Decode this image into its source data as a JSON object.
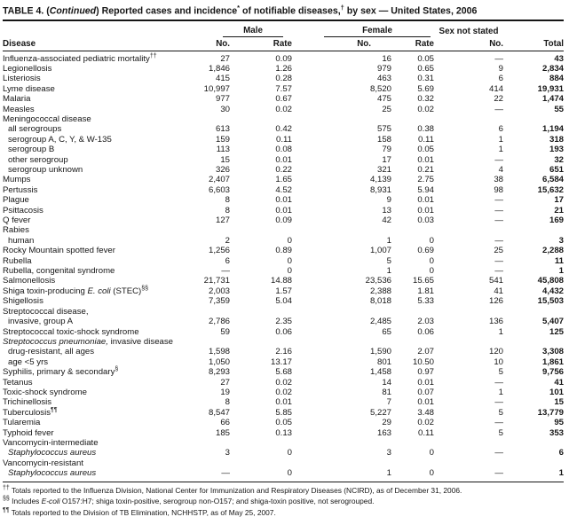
{
  "title": {
    "segments": [
      [
        "TABLE 4. (",
        "n"
      ],
      [
        "Continued",
        "i"
      ],
      [
        ") Reported cases and incidence",
        "n"
      ],
      [
        "*",
        "sup"
      ],
      [
        " of notifiable diseases,",
        "n"
      ],
      [
        "†",
        "sup"
      ],
      [
        " by sex — United States, 2006",
        "n"
      ]
    ]
  },
  "header": {
    "disease": "Disease",
    "groups": {
      "male": "Male",
      "female": "Female",
      "sex_not_stated": "Sex not stated"
    },
    "cols": {
      "no": "No.",
      "rate": "Rate",
      "total": "Total"
    }
  },
  "table": {
    "type": "table",
    "cell_names": [
      "male-no",
      "male-rate",
      "female-no",
      "female-rate",
      "sex-not-stated-no",
      "total"
    ],
    "rows": [
      {
        "label": [
          [
            "Influenza-associated pediatric mortality",
            "n"
          ],
          [
            "††",
            "sup"
          ]
        ],
        "indent": 0,
        "cells": [
          "27",
          "0.09",
          "16",
          "0.05",
          "—",
          "43"
        ]
      },
      {
        "label": [
          [
            "Legionellosis",
            "n"
          ]
        ],
        "indent": 0,
        "cells": [
          "1,846",
          "1.26",
          "979",
          "0.65",
          "9",
          "2,834"
        ]
      },
      {
        "label": [
          [
            "Listeriosis",
            "n"
          ]
        ],
        "indent": 0,
        "cells": [
          "415",
          "0.28",
          "463",
          "0.31",
          "6",
          "884"
        ]
      },
      {
        "label": [
          [
            "Lyme disease",
            "n"
          ]
        ],
        "indent": 0,
        "cells": [
          "10,997",
          "7.57",
          "8,520",
          "5.69",
          "414",
          "19,931"
        ]
      },
      {
        "label": [
          [
            "Malaria",
            "n"
          ]
        ],
        "indent": 0,
        "cells": [
          "977",
          "0.67",
          "475",
          "0.32",
          "22",
          "1,474"
        ]
      },
      {
        "label": [
          [
            "Measles",
            "n"
          ]
        ],
        "indent": 0,
        "cells": [
          "30",
          "0.02",
          "25",
          "0.02",
          "—",
          "55"
        ]
      },
      {
        "label": [
          [
            "Meningococcal disease",
            "n"
          ]
        ],
        "indent": 0,
        "cells": null
      },
      {
        "label": [
          [
            "all serogroups",
            "n"
          ]
        ],
        "indent": 1,
        "cells": [
          "613",
          "0.42",
          "575",
          "0.38",
          "6",
          "1,194"
        ]
      },
      {
        "label": [
          [
            "serogroup A, C, Y, & W-135",
            "n"
          ]
        ],
        "indent": 1,
        "cells": [
          "159",
          "0.11",
          "158",
          "0.11",
          "1",
          "318"
        ]
      },
      {
        "label": [
          [
            "serogroup B",
            "n"
          ]
        ],
        "indent": 1,
        "cells": [
          "113",
          "0.08",
          "79",
          "0.05",
          "1",
          "193"
        ]
      },
      {
        "label": [
          [
            "other serogroup",
            "n"
          ]
        ],
        "indent": 1,
        "cells": [
          "15",
          "0.01",
          "17",
          "0.01",
          "—",
          "32"
        ]
      },
      {
        "label": [
          [
            "serogroup unknown",
            "n"
          ]
        ],
        "indent": 1,
        "cells": [
          "326",
          "0.22",
          "321",
          "0.21",
          "4",
          "651"
        ]
      },
      {
        "label": [
          [
            "Mumps",
            "n"
          ]
        ],
        "indent": 0,
        "cells": [
          "2,407",
          "1.65",
          "4,139",
          "2.75",
          "38",
          "6,584"
        ]
      },
      {
        "label": [
          [
            "Pertussis",
            "n"
          ]
        ],
        "indent": 0,
        "cells": [
          "6,603",
          "4.52",
          "8,931",
          "5.94",
          "98",
          "15,632"
        ]
      },
      {
        "label": [
          [
            "Plague",
            "n"
          ]
        ],
        "indent": 0,
        "cells": [
          "8",
          "0.01",
          "9",
          "0.01",
          "—",
          "17"
        ]
      },
      {
        "label": [
          [
            "Psittacosis",
            "n"
          ]
        ],
        "indent": 0,
        "cells": [
          "8",
          "0.01",
          "13",
          "0.01",
          "—",
          "21"
        ]
      },
      {
        "label": [
          [
            "Q fever",
            "n"
          ]
        ],
        "indent": 0,
        "cells": [
          "127",
          "0.09",
          "42",
          "0.03",
          "—",
          "169"
        ]
      },
      {
        "label": [
          [
            "Rabies",
            "n"
          ]
        ],
        "indent": 0,
        "cells": null
      },
      {
        "label": [
          [
            "human",
            "n"
          ]
        ],
        "indent": 1,
        "cells": [
          "2",
          "0",
          "1",
          "0",
          "—",
          "3"
        ]
      },
      {
        "label": [
          [
            "Rocky Mountain spotted fever",
            "n"
          ]
        ],
        "indent": 0,
        "cells": [
          "1,256",
          "0.89",
          "1,007",
          "0.69",
          "25",
          "2,288"
        ]
      },
      {
        "label": [
          [
            "Rubella",
            "n"
          ]
        ],
        "indent": 0,
        "cells": [
          "6",
          "0",
          "5",
          "0",
          "—",
          "11"
        ]
      },
      {
        "label": [
          [
            "Rubella, congenital syndrome",
            "n"
          ]
        ],
        "indent": 0,
        "cells": [
          "—",
          "0",
          "1",
          "0",
          "—",
          "1"
        ]
      },
      {
        "label": [
          [
            "Salmonellosis",
            "n"
          ]
        ],
        "indent": 0,
        "cells": [
          "21,731",
          "14.88",
          "23,536",
          "15.65",
          "541",
          "45,808"
        ]
      },
      {
        "label": [
          [
            "Shiga toxin-producing ",
            "n"
          ],
          [
            "E. coli",
            "i"
          ],
          [
            " (STEC)",
            "n"
          ],
          [
            "§§",
            "sup"
          ]
        ],
        "indent": 0,
        "cells": [
          "2,003",
          "1.57",
          "2,388",
          "1.81",
          "41",
          "4,432"
        ]
      },
      {
        "label": [
          [
            "Shigellosis",
            "n"
          ]
        ],
        "indent": 0,
        "cells": [
          "7,359",
          "5.04",
          "8,018",
          "5.33",
          "126",
          "15,503"
        ]
      },
      {
        "label": [
          [
            "Streptococcal disease,",
            "n"
          ]
        ],
        "indent": 0,
        "cells": null
      },
      {
        "label": [
          [
            "invasive, group A",
            "n"
          ]
        ],
        "indent": 1,
        "cells": [
          "2,786",
          "2.35",
          "2,485",
          "2.03",
          "136",
          "5,407"
        ]
      },
      {
        "label": [
          [
            "Streptococcal toxic-shock syndrome",
            "n"
          ]
        ],
        "indent": 0,
        "cells": [
          "59",
          "0.06",
          "65",
          "0.06",
          "1",
          "125"
        ]
      },
      {
        "label": [
          [
            "Streptococcus pneumoniae,",
            "i"
          ],
          [
            " invasive disease",
            "n"
          ]
        ],
        "indent": 0,
        "cells": null
      },
      {
        "label": [
          [
            "drug-resistant, all ages",
            "n"
          ]
        ],
        "indent": 1,
        "cells": [
          "1,598",
          "2.16",
          "1,590",
          "2.07",
          "120",
          "3,308"
        ]
      },
      {
        "label": [
          [
            "age <5 yrs",
            "n"
          ]
        ],
        "indent": 1,
        "cells": [
          "1,050",
          "13.17",
          "801",
          "10.50",
          "10",
          "1,861"
        ]
      },
      {
        "label": [
          [
            "Syphilis, primary & secondary",
            "n"
          ],
          [
            "§",
            "sup"
          ]
        ],
        "indent": 0,
        "cells": [
          "8,293",
          "5.68",
          "1,458",
          "0.97",
          "5",
          "9,756"
        ]
      },
      {
        "label": [
          [
            "Tetanus",
            "n"
          ]
        ],
        "indent": 0,
        "cells": [
          "27",
          "0.02",
          "14",
          "0.01",
          "—",
          "41"
        ]
      },
      {
        "label": [
          [
            "Toxic-shock syndrome",
            "n"
          ]
        ],
        "indent": 0,
        "cells": [
          "19",
          "0.02",
          "81",
          "0.07",
          "1",
          "101"
        ]
      },
      {
        "label": [
          [
            "Trichinellosis",
            "n"
          ]
        ],
        "indent": 0,
        "cells": [
          "8",
          "0.01",
          "7",
          "0.01",
          "—",
          "15"
        ]
      },
      {
        "label": [
          [
            "Tuberculosis",
            "n"
          ],
          [
            "¶¶",
            "sup"
          ]
        ],
        "indent": 0,
        "cells": [
          "8,547",
          "5.85",
          "5,227",
          "3.48",
          "5",
          "13,779"
        ]
      },
      {
        "label": [
          [
            "Tularemia",
            "n"
          ]
        ],
        "indent": 0,
        "cells": [
          "66",
          "0.05",
          "29",
          "0.02",
          "—",
          "95"
        ]
      },
      {
        "label": [
          [
            "Typhoid fever",
            "n"
          ]
        ],
        "indent": 0,
        "cells": [
          "185",
          "0.13",
          "163",
          "0.11",
          "5",
          "353"
        ]
      },
      {
        "label": [
          [
            "Vancomycin-intermediate",
            "n"
          ]
        ],
        "indent": 0,
        "cells": null
      },
      {
        "label": [
          [
            "Staphylococcus aureus",
            "i"
          ]
        ],
        "indent": 1,
        "cells": [
          "3",
          "0",
          "3",
          "0",
          "—",
          "6"
        ]
      },
      {
        "label": [
          [
            "Vancomycin-resistant",
            "n"
          ]
        ],
        "indent": 0,
        "cells": null
      },
      {
        "label": [
          [
            "Staphylococcus aureus",
            "i"
          ]
        ],
        "indent": 1,
        "cells": [
          "—",
          "0",
          "1",
          "0",
          "—",
          "1"
        ]
      }
    ]
  },
  "footnotes": [
    [
      [
        "††",
        "sup"
      ],
      [
        " Totals reported to the Influenza Division, National Center for Immunization and Respiratory Diseases (NCIRD), as of December 31, 2006.",
        "n"
      ]
    ],
    [
      [
        "§§",
        "sup"
      ],
      [
        " Includes ",
        "n"
      ],
      [
        "E-coli",
        "i"
      ],
      [
        " O157:H7; shiga toxin-positive, serogroup non-O157; and shiga-toxin positive, not serogrouped.",
        "n"
      ]
    ],
    [
      [
        "¶¶",
        "sup"
      ],
      [
        " Totals reported to the Division of TB Elimination, NCHHSTP, as of May 25, 2007.",
        "n"
      ]
    ]
  ]
}
